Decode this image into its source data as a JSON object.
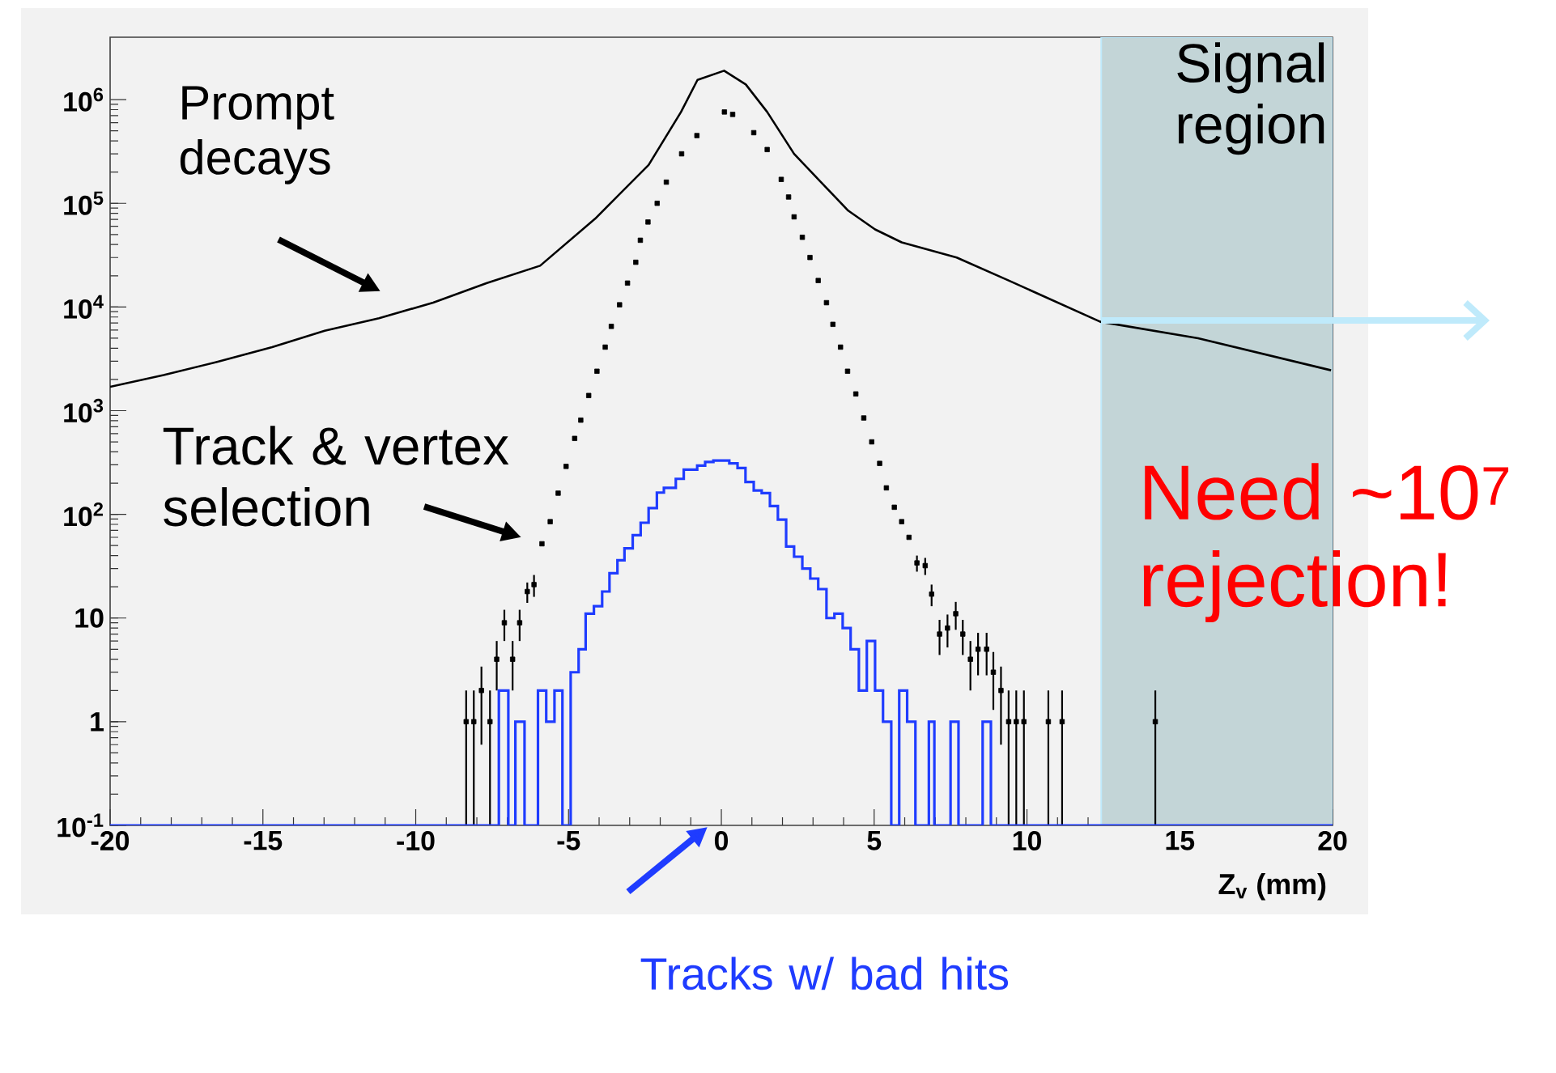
{
  "chart_data": {
    "type": "line",
    "xlabel": "Z$_{v}$ (mm)",
    "xlim": [
      -20,
      20
    ],
    "ylim": [
      0.1,
      4000000
    ],
    "log": "y",
    "xticks": [
      -20,
      -15,
      -10,
      -5,
      0,
      5,
      10,
      15,
      20
    ],
    "yticks": [
      {
        "value": 0.1,
        "label": "10$^{-1}$"
      },
      1,
      10,
      {
        "value": 100,
        "label": "10$^{2}$"
      },
      {
        "value": 1000,
        "label": "10$^{3}$"
      },
      {
        "value": 10000,
        "label": "10$^{4}$"
      },
      {
        "value": 100000,
        "label": "10$^{5}$"
      },
      {
        "value": 1000000,
        "label": "10$^{6}$"
      }
    ],
    "series": [
      {
        "name": "Prompt decays",
        "color": "#000000",
        "x": [
          -20,
          -18.25,
          -16.5,
          -14.7,
          -12.98,
          -11.2,
          -9.43,
          -7.67,
          -5.93,
          -4.13,
          -2.38,
          -1.32,
          -0.78,
          0.09,
          0.8,
          1.5,
          2.38,
          3.26,
          4.15,
          5.03,
          5.9,
          7.7,
          9.4,
          12.4,
          15.6,
          19.95
        ],
        "values": [
          1700,
          2200,
          2950,
          4100,
          5900,
          7800,
          11000,
          17000,
          25000,
          71000,
          234000,
          760000,
          1550000,
          1900000,
          1400000,
          760000,
          300000,
          160000,
          85000,
          56000,
          42000,
          30000,
          18000,
          7200,
          5000,
          2450
        ]
      },
      {
        "name": "Track & vertex selection",
        "type": "scatter",
        "marker": "square",
        "color": "#000000",
        "x": [
          -8.35,
          -8.1,
          -7.85,
          -7.57,
          -7.35,
          -7.1,
          -6.83,
          -6.6,
          -6.35,
          -6.13,
          -5.87,
          -5.6,
          -5.34,
          -5.08,
          -4.8,
          -4.6,
          -4.34,
          -4.07,
          -3.8,
          -3.6,
          -3.33,
          -3.07,
          -2.8,
          -2.65,
          -2.4,
          -2.1,
          -1.8,
          -1.3,
          -0.8,
          0.1,
          0.37,
          1.06,
          1.5,
          1.96,
          2.2,
          2.38,
          2.65,
          2.9,
          3.17,
          3.44,
          3.65,
          3.9,
          4.13,
          4.4,
          4.66,
          4.92,
          5.18,
          5.4,
          5.66,
          5.9,
          6.14,
          6.4,
          6.67,
          6.88,
          7.14,
          7.4,
          7.67,
          7.9,
          8.15,
          8.4,
          8.68,
          8.9,
          9.15,
          9.4,
          9.65,
          9.9,
          10.7,
          11.15,
          14.2
        ],
        "values": [
          1,
          1,
          2,
          1,
          4,
          9,
          4,
          9,
          18,
          21,
          52,
          85,
          160,
          290,
          540,
          810,
          1400,
          2400,
          4100,
          6500,
          10500,
          17000,
          27000,
          44000,
          66000,
          100000,
          160000,
          300000,
          450000,
          760000,
          720000,
          480000,
          330000,
          170000,
          115000,
          74000,
          47000,
          30000,
          18000,
          11000,
          6800,
          4100,
          2400,
          1450,
          850,
          500,
          310,
          180,
          117,
          85,
          60,
          34,
          32,
          17,
          7,
          8,
          11,
          7,
          4,
          5,
          5,
          3,
          2,
          1,
          1,
          1,
          1,
          1,
          1
        ],
        "errors": [
          [
            0.1,
            2
          ],
          [
            0.1,
            2
          ],
          [
            0.6,
            3.4
          ],
          [
            0.1,
            2
          ],
          [
            2,
            6
          ],
          [
            6,
            12
          ],
          [
            2,
            6
          ],
          [
            6,
            12
          ],
          [
            14,
            22
          ],
          [
            16,
            26
          ],
          null,
          null,
          null,
          null,
          null,
          null,
          null,
          null,
          null,
          null,
          null,
          null,
          null,
          null,
          null,
          null,
          null,
          null,
          null,
          null,
          null,
          null,
          null,
          null,
          null,
          null,
          null,
          null,
          null,
          null,
          null,
          null,
          null,
          null,
          null,
          null,
          null,
          null,
          null,
          null,
          null,
          [
            28,
            40
          ],
          [
            26,
            38
          ],
          [
            13,
            21
          ],
          [
            4.4,
            9.6
          ],
          [
            5.2,
            10.8
          ],
          [
            7.7,
            14.3
          ],
          [
            4.4,
            9.6
          ],
          [
            2,
            6
          ],
          [
            2.8,
            7.2
          ],
          [
            2.8,
            7.2
          ],
          [
            1.3,
            4.7
          ],
          [
            0.6,
            3.4
          ],
          [
            0.1,
            2
          ],
          [
            0.1,
            2
          ],
          [
            0.1,
            2
          ],
          [
            0.1,
            2
          ],
          [
            0.1,
            2
          ],
          [
            0.1,
            2
          ]
        ]
      },
      {
        "name": "Tracks w/ bad hits",
        "type": "step",
        "color": "#1f3cff",
        "x": [
          -20,
          -7.28,
          -6.97,
          -6.74,
          -6.44,
          -6.0,
          -5.73,
          -5.46,
          -5.2,
          -4.93,
          -4.67,
          -4.44,
          -4.17,
          -3.9,
          -3.66,
          -3.4,
          -3.17,
          -2.9,
          -2.64,
          -2.38,
          -2.11,
          -1.88,
          -1.49,
          -1.23,
          -0.79,
          -0.53,
          -0.26,
          0.26,
          0.53,
          0.79,
          1.06,
          1.32,
          1.59,
          1.85,
          2.12,
          2.38,
          2.65,
          2.91,
          3.17,
          3.44,
          3.7,
          3.97,
          4.23,
          4.5,
          4.76,
          5.03,
          5.29,
          5.56,
          5.82,
          6.08,
          6.35,
          6.79,
          6.97,
          7.5,
          7.76,
          8.55,
          8.82,
          20
        ],
        "values": [
          0.1,
          2,
          0.1,
          1,
          0.1,
          2,
          1,
          2,
          0.1,
          3,
          5,
          11,
          13,
          18,
          27,
          36,
          47,
          63,
          83,
          115,
          162,
          180,
          220,
          270,
          295,
          320,
          330,
          310,
          280,
          205,
          170,
          160,
          120,
          89,
          49,
          39,
          30,
          24,
          19,
          10,
          11,
          8,
          5,
          2,
          6,
          2,
          1,
          0.1,
          2,
          1,
          0.1,
          1,
          0.1,
          1,
          0.1,
          1,
          0.1,
          0.1
        ]
      }
    ],
    "bands": [
      {
        "axis": "x",
        "from": 12.43,
        "to": 20,
        "label": "Signal region",
        "color": "#c3d5d7"
      }
    ],
    "annotations": [
      "Need ~10$^{7}$ rejection!"
    ]
  }
}
